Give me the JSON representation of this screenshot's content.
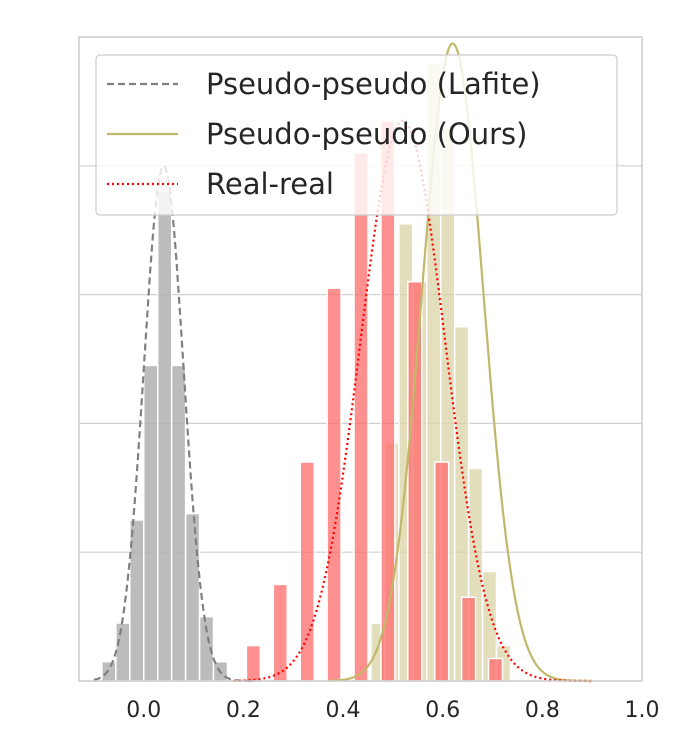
{
  "chart_data": {
    "type": "histogram",
    "title": "",
    "xlabel": "",
    "ylabel": "",
    "xlim": [
      -0.13,
      1.0
    ],
    "ylim": [
      0,
      10
    ],
    "grid": "horizontal",
    "legend_position": "top",
    "x_ticks": [
      "0.0",
      "0.2",
      "0.4",
      "0.6",
      "0.8",
      "1.0"
    ],
    "x_tick_values": [
      0.0,
      0.2,
      0.4,
      0.6,
      0.8,
      1.0
    ],
    "y_gridlines": [
      2,
      4,
      6,
      8
    ],
    "bin_width": 0.028,
    "series": [
      {
        "name": "Pseudo-pseudo (Lafite)",
        "line_style": "dashed",
        "line_color": "#808080",
        "bar_color": "#b0b0b0",
        "kde": {
          "mean": 0.04,
          "sd": 0.04,
          "peak": 8.0
        },
        "bins": [
          {
            "x": -0.07,
            "h": 0.3
          },
          {
            "x": -0.042,
            "h": 0.9
          },
          {
            "x": -0.014,
            "h": 2.5
          },
          {
            "x": 0.014,
            "h": 4.9
          },
          {
            "x": 0.042,
            "h": 7.6
          },
          {
            "x": 0.07,
            "h": 4.9
          },
          {
            "x": 0.098,
            "h": 2.6
          },
          {
            "x": 0.126,
            "h": 1.0
          },
          {
            "x": 0.154,
            "h": 0.3
          }
        ]
      },
      {
        "name": "Pseudo-pseudo (Ours)",
        "line_style": "solid",
        "line_color": "#c2b86a",
        "bar_color": "#d9d3a5",
        "kde": {
          "mean": 0.62,
          "sd": 0.062,
          "peak": 9.9
        },
        "bins": [
          {
            "x": 0.47,
            "h": 0.9
          },
          {
            "x": 0.498,
            "h": 3.7
          },
          {
            "x": 0.526,
            "h": 7.1
          },
          {
            "x": 0.554,
            "h": 6.2
          },
          {
            "x": 0.582,
            "h": 9.6
          },
          {
            "x": 0.61,
            "h": 8.6
          },
          {
            "x": 0.638,
            "h": 5.5
          },
          {
            "x": 0.666,
            "h": 3.3
          },
          {
            "x": 0.694,
            "h": 1.7
          },
          {
            "x": 0.722,
            "h": 0.55
          }
        ]
      },
      {
        "name": "Real-real",
        "line_style": "dotted",
        "line_color": "#ff0000",
        "bar_color": "#ff6b6b",
        "kde": {
          "mean": 0.52,
          "sd": 0.085,
          "peak": 8.7
        },
        "bins": [
          {
            "x": 0.22,
            "h": 0.55
          },
          {
            "x": 0.274,
            "h": 1.5
          },
          {
            "x": 0.328,
            "h": 3.4
          },
          {
            "x": 0.382,
            "h": 6.1
          },
          {
            "x": 0.436,
            "h": 8.2
          },
          {
            "x": 0.49,
            "h": 8.7
          },
          {
            "x": 0.544,
            "h": 6.2
          },
          {
            "x": 0.598,
            "h": 3.4
          },
          {
            "x": 0.652,
            "h": 1.3
          },
          {
            "x": 0.706,
            "h": 0.35
          }
        ]
      }
    ]
  },
  "colors": {
    "grid": "#d0d0d0",
    "frame": "#cccccc",
    "text": "#262626"
  }
}
